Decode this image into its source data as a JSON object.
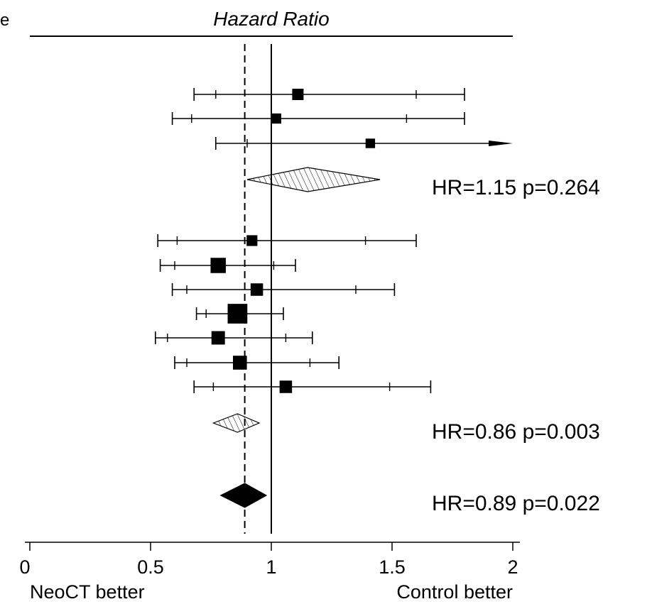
{
  "panel_letter": "e",
  "chart_data": {
    "type": "forest",
    "title": "Hazard Ratio",
    "xlim": [
      0,
      2
    ],
    "x_ticks": [
      0,
      0.5,
      1,
      1.5,
      2
    ],
    "x_tick_labels": [
      "0",
      "0.5",
      "1",
      "1.5",
      "2"
    ],
    "left_label": "NeoCT better",
    "right_label": "Control better",
    "reference_line": 1,
    "pooled_reference_line": 0.89,
    "groups": [
      {
        "studies": [
          {
            "hr": 1.11,
            "outer": [
              0.68,
              1.8
            ],
            "inner": [
              0.77,
              1.6
            ],
            "weight": 1.0
          },
          {
            "hr": 1.02,
            "outer": [
              0.59,
              1.8
            ],
            "inner": [
              0.67,
              1.56
            ],
            "weight": 0.8
          },
          {
            "hr": 1.41,
            "outer": [
              0.77,
              2.0
            ],
            "inner": [
              0.9,
              null
            ],
            "weight": 0.7,
            "arrow_right": true
          }
        ],
        "pooled": {
          "hr": 1.15,
          "ci": [
            0.9,
            1.45
          ],
          "style": "hatched"
        },
        "summary_label": "HR=1.15 p=0.264"
      },
      {
        "studies": [
          {
            "hr": 0.92,
            "outer": [
              0.53,
              1.6
            ],
            "inner": [
              0.61,
              1.39
            ],
            "weight": 0.9
          },
          {
            "hr": 0.78,
            "outer": [
              0.54,
              1.1
            ],
            "inner": [
              0.6,
              1.01
            ],
            "weight": 1.8
          },
          {
            "hr": 0.94,
            "outer": [
              0.59,
              1.51
            ],
            "inner": [
              0.65,
              1.35
            ],
            "weight": 1.2
          },
          {
            "hr": 0.86,
            "outer": [
              0.69,
              1.05
            ],
            "inner": [
              0.73,
              1.0
            ],
            "weight": 3.0
          },
          {
            "hr": 0.78,
            "outer": [
              0.52,
              1.17
            ],
            "inner": [
              0.57,
              1.06
            ],
            "weight": 1.4
          },
          {
            "hr": 0.87,
            "outer": [
              0.6,
              1.28
            ],
            "inner": [
              0.65,
              1.16
            ],
            "weight": 1.5
          },
          {
            "hr": 1.06,
            "outer": [
              0.68,
              1.66
            ],
            "inner": [
              0.76,
              1.49
            ],
            "weight": 1.2
          }
        ],
        "pooled": {
          "hr": 0.86,
          "ci": [
            0.76,
            0.95
          ],
          "style": "hatched"
        },
        "summary_label": "HR=0.86 p=0.003"
      }
    ],
    "overall": {
      "hr": 0.89,
      "ci": [
        0.79,
        0.98
      ],
      "style": "solid",
      "summary_label": "HR=0.89 p=0.022"
    }
  }
}
